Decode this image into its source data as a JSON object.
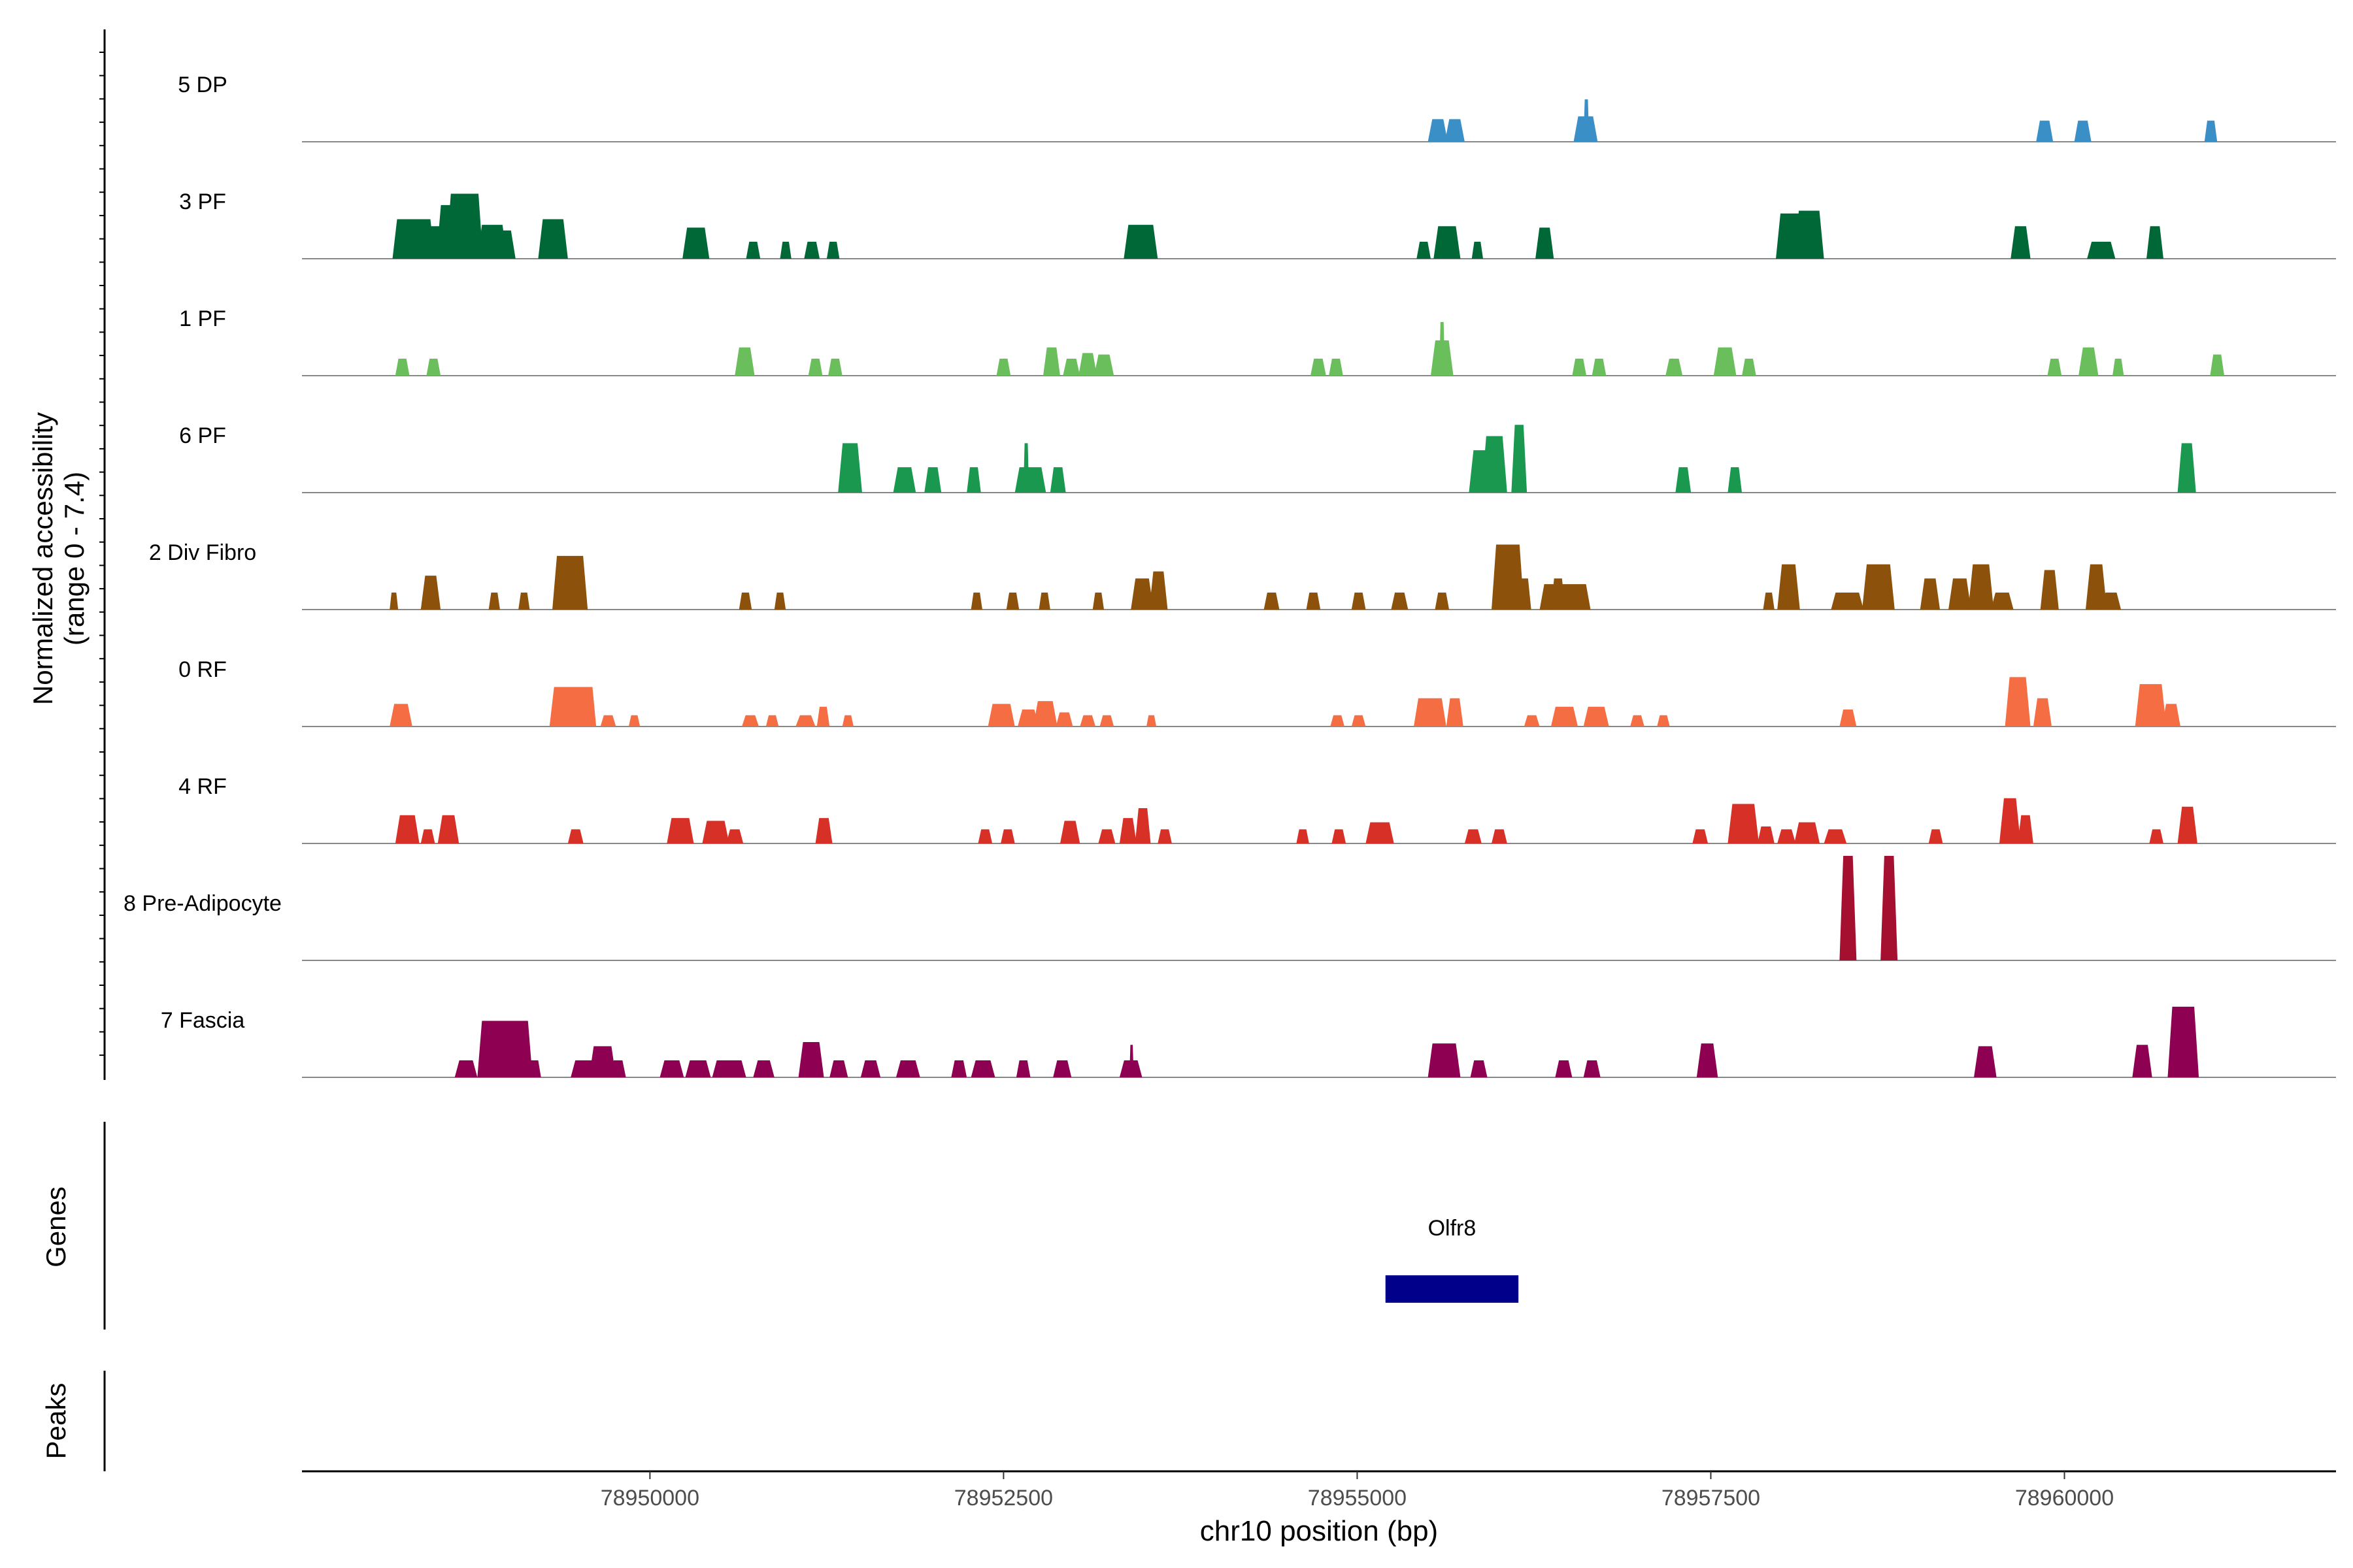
{
  "chart_data": {
    "type": "area",
    "chromosome": "chr10",
    "xlabel": "chr10 position (bp)",
    "ylabel_line1": "Normalized accessibility",
    "ylabel_line2": "(range 0 - 7.4)",
    "y_range": [
      0,
      7.4
    ],
    "x_range": [
      78947540,
      78961920
    ],
    "x_ticks": [
      78950000,
      78952500,
      78955000,
      78957500,
      78960000
    ],
    "x_tick_labels": [
      "78950000",
      "78952500",
      "78955000",
      "78957500",
      "78960000"
    ],
    "genes_label": "Genes",
    "peaks_label": "Peaks",
    "genes": [
      {
        "name": "Olfr8",
        "start": 78955200,
        "end": 78956140,
        "color": "#00008B"
      }
    ],
    "tracks": [
      {
        "name": "5 DP",
        "color": "#3A8FC6",
        "peaks": [
          [
            78955500,
            78955640,
            1.6
          ],
          [
            78955620,
            78955760,
            1.6
          ],
          [
            78956530,
            78956700,
            1.8
          ],
          [
            78956600,
            78956640,
            3.0
          ],
          [
            78959800,
            78959920,
            1.5
          ],
          [
            78960070,
            78960190,
            1.5
          ],
          [
            78960990,
            78961080,
            1.5
          ]
        ]
      },
      {
        "name": "3 PF",
        "color": "#006837",
        "peaks": [
          [
            78948180,
            78948480,
            2.8
          ],
          [
            78948380,
            78948620,
            2.3
          ],
          [
            78948490,
            78948760,
            3.8
          ],
          [
            78948560,
            78948820,
            4.6
          ],
          [
            78948780,
            78948990,
            2.4
          ],
          [
            78948850,
            78949050,
            2.0
          ],
          [
            78949210,
            78949420,
            2.8
          ],
          [
            78950230,
            78950420,
            2.2
          ],
          [
            78950680,
            78950780,
            1.2
          ],
          [
            78950920,
            78951000,
            1.2
          ],
          [
            78951090,
            78951200,
            1.2
          ],
          [
            78951250,
            78951340,
            1.2
          ],
          [
            78953350,
            78953590,
            2.4
          ],
          [
            78955420,
            78955520,
            1.2
          ],
          [
            78955540,
            78955730,
            2.3
          ],
          [
            78955810,
            78955890,
            1.2
          ],
          [
            78956260,
            78956390,
            2.2
          ],
          [
            78957960,
            78958260,
            3.2
          ],
          [
            78958090,
            78958300,
            3.4
          ],
          [
            78959620,
            78959760,
            2.3
          ],
          [
            78960160,
            78960360,
            1.2
          ],
          [
            78960580,
            78960700,
            2.3
          ]
        ]
      },
      {
        "name": "1 PF",
        "color": "#6ABE5B",
        "peaks": [
          [
            78948200,
            78948300,
            1.2
          ],
          [
            78948420,
            78948520,
            1.2
          ],
          [
            78950600,
            78950740,
            2.0
          ],
          [
            78951120,
            78951220,
            1.2
          ],
          [
            78951260,
            78951360,
            1.2
          ],
          [
            78952450,
            78952550,
            1.2
          ],
          [
            78952780,
            78952900,
            2.0
          ],
          [
            78952920,
            78953040,
            1.2
          ],
          [
            78953030,
            78953160,
            1.6
          ],
          [
            78953140,
            78953280,
            1.5
          ],
          [
            78954670,
            78954780,
            1.2
          ],
          [
            78954800,
            78954900,
            1.2
          ],
          [
            78955520,
            78955680,
            2.5
          ],
          [
            78955580,
            78955620,
            3.8
          ],
          [
            78956520,
            78956620,
            1.2
          ],
          [
            78956660,
            78956760,
            1.2
          ],
          [
            78957180,
            78957300,
            1.2
          ],
          [
            78957520,
            78957680,
            2.0
          ],
          [
            78957720,
            78957820,
            1.2
          ],
          [
            78959880,
            78959980,
            1.2
          ],
          [
            78960100,
            78960240,
            2.0
          ],
          [
            78960340,
            78960420,
            1.2
          ],
          [
            78961030,
            78961130,
            1.5
          ]
        ]
      },
      {
        "name": "6 PF",
        "color": "#1A9850",
        "peaks": [
          [
            78951330,
            78951500,
            3.5
          ],
          [
            78951720,
            78951880,
            1.8
          ],
          [
            78951940,
            78952060,
            1.8
          ],
          [
            78952240,
            78952340,
            1.8
          ],
          [
            78952580,
            78952800,
            1.8
          ],
          [
            78952640,
            78952680,
            3.5
          ],
          [
            78952830,
            78952940,
            1.8
          ],
          [
            78955790,
            78955960,
            3.0
          ],
          [
            78955880,
            78956060,
            4.0
          ],
          [
            78956090,
            78956200,
            4.8
          ],
          [
            78957250,
            78957360,
            1.8
          ],
          [
            78957620,
            78957720,
            1.8
          ],
          [
            78960800,
            78960930,
            3.5
          ]
        ]
      },
      {
        "name": "2 Div Fibro",
        "color": "#8C510A",
        "peaks": [
          [
            78948160,
            78948220,
            1.2
          ],
          [
            78948380,
            78948520,
            2.4
          ],
          [
            78948860,
            78948940,
            1.2
          ],
          [
            78949070,
            78949150,
            1.2
          ],
          [
            78949310,
            78949560,
            3.8
          ],
          [
            78950630,
            78950720,
            1.2
          ],
          [
            78950880,
            78950960,
            1.2
          ],
          [
            78952270,
            78952350,
            1.2
          ],
          [
            78952520,
            78952610,
            1.2
          ],
          [
            78952750,
            78952830,
            1.2
          ],
          [
            78953130,
            78953210,
            1.2
          ],
          [
            78953400,
            78953560,
            2.2
          ],
          [
            78953530,
            78953660,
            2.7
          ],
          [
            78954340,
            78954450,
            1.2
          ],
          [
            78954640,
            78954740,
            1.2
          ],
          [
            78954960,
            78955060,
            1.2
          ],
          [
            78955240,
            78955360,
            1.2
          ],
          [
            78955550,
            78955650,
            1.2
          ],
          [
            78955950,
            78956180,
            4.6
          ],
          [
            78956130,
            78956230,
            2.2
          ],
          [
            78956290,
            78956650,
            1.8
          ],
          [
            78956370,
            78956470,
            2.2
          ],
          [
            78957870,
            78957950,
            1.2
          ],
          [
            78957970,
            78958130,
            3.2
          ],
          [
            78958350,
            78958580,
            1.2
          ],
          [
            78958570,
            78958800,
            3.2
          ],
          [
            78958980,
            78959120,
            2.2
          ],
          [
            78959180,
            78959340,
            2.2
          ],
          [
            78959320,
            78959500,
            3.2
          ],
          [
            78959480,
            78959640,
            1.2
          ],
          [
            78959830,
            78959960,
            2.8
          ],
          [
            78960150,
            78960300,
            3.2
          ],
          [
            78960260,
            78960400,
            1.2
          ]
        ]
      },
      {
        "name": "0 RF",
        "color": "#F46D43",
        "peaks": [
          [
            78948160,
            78948320,
            1.6
          ],
          [
            78949290,
            78949580,
            2.8
          ],
          [
            78949500,
            78949620,
            2.8
          ],
          [
            78949650,
            78949760,
            0.8
          ],
          [
            78949850,
            78949930,
            0.8
          ],
          [
            78950650,
            78950770,
            0.8
          ],
          [
            78950820,
            78950910,
            0.8
          ],
          [
            78951030,
            78951170,
            0.8
          ],
          [
            78951180,
            78951270,
            1.4
          ],
          [
            78951360,
            78951440,
            0.8
          ],
          [
            78952390,
            78952580,
            1.6
          ],
          [
            78952600,
            78952750,
            1.2
          ],
          [
            78952710,
            78952880,
            1.8
          ],
          [
            78952870,
            78952990,
            1.0
          ],
          [
            78953040,
            78953150,
            0.8
          ],
          [
            78953180,
            78953280,
            0.8
          ],
          [
            78953510,
            78953580,
            0.8
          ],
          [
            78954810,
            78954910,
            0.8
          ],
          [
            78954960,
            78955060,
            0.8
          ],
          [
            78955400,
            78955630,
            2.0
          ],
          [
            78955630,
            78955750,
            2.0
          ],
          [
            78956180,
            78956290,
            0.8
          ],
          [
            78956370,
            78956560,
            1.4
          ],
          [
            78956600,
            78956780,
            1.4
          ],
          [
            78956930,
            78957030,
            0.8
          ],
          [
            78957120,
            78957210,
            0.8
          ],
          [
            78958410,
            78958530,
            1.2
          ],
          [
            78959580,
            78959760,
            3.5
          ],
          [
            78959780,
            78959910,
            2.0
          ],
          [
            78960500,
            78960720,
            3.0
          ],
          [
            78960690,
            78960820,
            1.6
          ]
        ]
      },
      {
        "name": "4 RF",
        "color": "#D73027",
        "peaks": [
          [
            78948200,
            78948370,
            2.0
          ],
          [
            78948380,
            78948480,
            1.0
          ],
          [
            78948500,
            78948650,
            2.0
          ],
          [
            78949420,
            78949530,
            1.0
          ],
          [
            78950120,
            78950310,
            1.8
          ],
          [
            78950370,
            78950560,
            1.6
          ],
          [
            78950540,
            78950660,
            1.0
          ],
          [
            78951170,
            78951290,
            1.8
          ],
          [
            78952320,
            78952420,
            1.0
          ],
          [
            78952480,
            78952580,
            1.0
          ],
          [
            78952900,
            78953040,
            1.6
          ],
          [
            78953170,
            78953290,
            1.0
          ],
          [
            78953320,
            78953440,
            1.8
          ],
          [
            78953430,
            78953540,
            2.5
          ],
          [
            78953590,
            78953690,
            1.0
          ],
          [
            78954570,
            78954660,
            1.0
          ],
          [
            78954820,
            78954920,
            1.0
          ],
          [
            78955060,
            78955260,
            1.5
          ],
          [
            78955760,
            78955880,
            1.0
          ],
          [
            78955950,
            78956060,
            1.0
          ],
          [
            78957370,
            78957480,
            1.0
          ],
          [
            78957620,
            78957840,
            2.8
          ],
          [
            78957830,
            78957950,
            1.2
          ],
          [
            78957970,
            78958100,
            1.0
          ],
          [
            78958090,
            78958270,
            1.5
          ],
          [
            78958300,
            78958460,
            1.0
          ],
          [
            78959040,
            78959140,
            1.0
          ],
          [
            78959540,
            78959690,
            3.2
          ],
          [
            78959670,
            78959780,
            2.0
          ],
          [
            78960600,
            78960700,
            1.0
          ],
          [
            78960800,
            78960940,
            2.6
          ]
        ]
      },
      {
        "name": "8 Pre-Adipocyte",
        "color": "#A50F30",
        "peaks": [
          [
            78958410,
            78958530,
            7.4
          ],
          [
            78958700,
            78958820,
            7.4
          ]
        ]
      },
      {
        "name": "7 Fascia",
        "color": "#8E0152",
        "peaks": [
          [
            78948620,
            78948780,
            1.2
          ],
          [
            78948780,
            78949060,
            4.0
          ],
          [
            78948950,
            78949170,
            4.0
          ],
          [
            78949140,
            78949230,
            1.2
          ],
          [
            78949440,
            78949620,
            1.2
          ],
          [
            78949570,
            78949760,
            2.2
          ],
          [
            78949720,
            78949830,
            1.2
          ],
          [
            78950070,
            78950240,
            1.2
          ],
          [
            78950250,
            78950430,
            1.2
          ],
          [
            78950440,
            78950680,
            1.2
          ],
          [
            78950730,
            78950880,
            1.2
          ],
          [
            78951050,
            78951230,
            2.5
          ],
          [
            78951270,
            78951400,
            1.2
          ],
          [
            78951490,
            78951630,
            1.2
          ],
          [
            78951740,
            78951910,
            1.2
          ],
          [
            78952130,
            78952240,
            1.2
          ],
          [
            78952270,
            78952440,
            1.2
          ],
          [
            78952590,
            78952690,
            1.2
          ],
          [
            78952850,
            78952980,
            1.2
          ],
          [
            78953320,
            78953480,
            1.2
          ],
          [
            78953390,
            78953420,
            2.3
          ],
          [
            78955500,
            78955730,
            2.4
          ],
          [
            78955800,
            78955920,
            1.2
          ],
          [
            78956400,
            78956520,
            1.2
          ],
          [
            78956600,
            78956720,
            1.2
          ],
          [
            78957400,
            78957550,
            2.4
          ],
          [
            78959360,
            78959520,
            2.2
          ],
          [
            78960480,
            78960620,
            2.3
          ],
          [
            78960730,
            78960950,
            5.0
          ]
        ]
      }
    ]
  }
}
